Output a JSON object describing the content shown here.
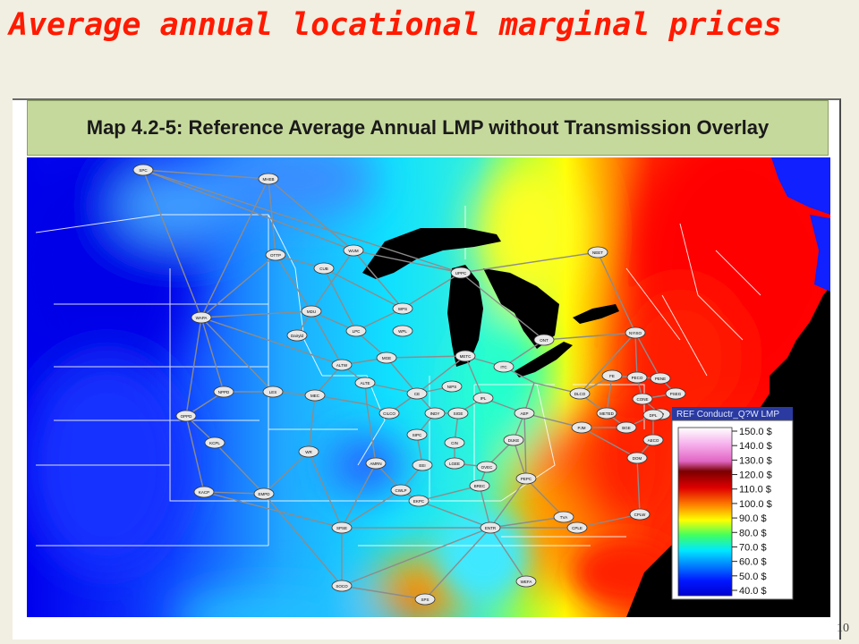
{
  "slide": {
    "title": "Average annual locational marginal prices",
    "page_number": "10"
  },
  "map": {
    "title": "Map 4.2-5: Reference Average Annual LMP without Transmission Overlay",
    "legend": {
      "heading": "REF Conductr_Q?W LMP",
      "entries": [
        "150.0 $",
        "140.0 $",
        "130.0 $",
        "120.0 $",
        "110.0 $",
        "100.0 $",
        "90.0 $",
        "80.0 $",
        "70.0 $",
        "60.0 $",
        "50.0 $",
        "40.0 $"
      ],
      "colors": [
        "#ffffff",
        "#f6b0ec",
        "#e266c4",
        "#7a0000",
        "#e00000",
        "#ff8000",
        "#ffff00",
        "#40ff60",
        "#00e8ff",
        "#0080ff",
        "#0018ff",
        "#0000d0"
      ]
    },
    "nodes": [
      {
        "id": "n1",
        "label": "SPC"
      },
      {
        "id": "n2",
        "label": "MHEB"
      },
      {
        "id": "n3",
        "label": "WUM"
      },
      {
        "id": "n4",
        "label": "OTTP"
      },
      {
        "id": "n5",
        "label": "CUB"
      },
      {
        "id": "n6",
        "label": "UPPC"
      },
      {
        "id": "n7",
        "label": "NEET"
      },
      {
        "id": "n8",
        "label": "WAPA"
      },
      {
        "id": "n9",
        "label": "MDU"
      },
      {
        "id": "n10",
        "label": "WPS"
      },
      {
        "id": "n11",
        "label": "Dairyld"
      },
      {
        "id": "n12",
        "label": "LPC"
      },
      {
        "id": "n13",
        "label": "WPL"
      },
      {
        "id": "n14",
        "label": "ONT"
      },
      {
        "id": "n15",
        "label": "NYISO"
      },
      {
        "id": "n16",
        "label": "ALTW"
      },
      {
        "id": "n17",
        "label": "MGE"
      },
      {
        "id": "n18",
        "label": "METC"
      },
      {
        "id": "n19",
        "label": "ITC"
      },
      {
        "id": "n20",
        "label": "NPPD"
      },
      {
        "id": "n21",
        "label": "MEC"
      },
      {
        "id": "n22",
        "label": "ALTE"
      },
      {
        "id": "n23",
        "label": "CE"
      },
      {
        "id": "n24",
        "label": "NIPS"
      },
      {
        "id": "n25",
        "label": "FE"
      },
      {
        "id": "n26",
        "label": "PENE"
      },
      {
        "id": "n27",
        "label": "LES"
      },
      {
        "id": "n28",
        "label": "OPPD"
      },
      {
        "id": "n29",
        "label": "CILCO"
      },
      {
        "id": "n30",
        "label": "AEP"
      },
      {
        "id": "n31",
        "label": "DLCO"
      },
      {
        "id": "n32",
        "label": "PECO"
      },
      {
        "id": "n33",
        "label": "CONE"
      },
      {
        "id": "n34",
        "label": "KCPL"
      },
      {
        "id": "n35",
        "label": "INDY"
      },
      {
        "id": "n36",
        "label": "IPL"
      },
      {
        "id": "n37",
        "label": "PJM"
      },
      {
        "id": "n38",
        "label": "METED"
      },
      {
        "id": "n39",
        "label": "PSEG"
      },
      {
        "id": "n40",
        "label": "JCP"
      },
      {
        "id": "n41",
        "label": "BGE"
      },
      {
        "id": "n42",
        "label": "DPL"
      },
      {
        "id": "n43",
        "label": "WR"
      },
      {
        "id": "n44",
        "label": "EMPD"
      },
      {
        "id": "n45",
        "label": "AMRN"
      },
      {
        "id": "n46",
        "label": "SIPC"
      },
      {
        "id": "n47",
        "label": "SIGE"
      },
      {
        "id": "n48",
        "label": "LGEE"
      },
      {
        "id": "n49",
        "label": "DUKE"
      },
      {
        "id": "n50",
        "label": "CIN"
      },
      {
        "id": "n51",
        "label": "OVEC"
      },
      {
        "id": "n52",
        "label": "PEPC"
      },
      {
        "id": "n53",
        "label": "DOM"
      },
      {
        "id": "n54",
        "label": "AECO"
      },
      {
        "id": "n55",
        "label": "KACP"
      },
      {
        "id": "n56",
        "label": "EEI"
      },
      {
        "id": "n57",
        "label": "CWLP"
      },
      {
        "id": "n58",
        "label": "BREC"
      },
      {
        "id": "n59",
        "label": "EKPC"
      },
      {
        "id": "n60",
        "label": "SPSE"
      },
      {
        "id": "n61",
        "label": "ENTR"
      },
      {
        "id": "n62",
        "label": "TVA"
      },
      {
        "id": "n63",
        "label": "CPLE"
      },
      {
        "id": "n64",
        "label": "CPLW"
      },
      {
        "id": "n65",
        "label": "SOCO"
      },
      {
        "id": "n66",
        "label": "SPS"
      },
      {
        "id": "n67",
        "label": "WEFA"
      }
    ]
  }
}
